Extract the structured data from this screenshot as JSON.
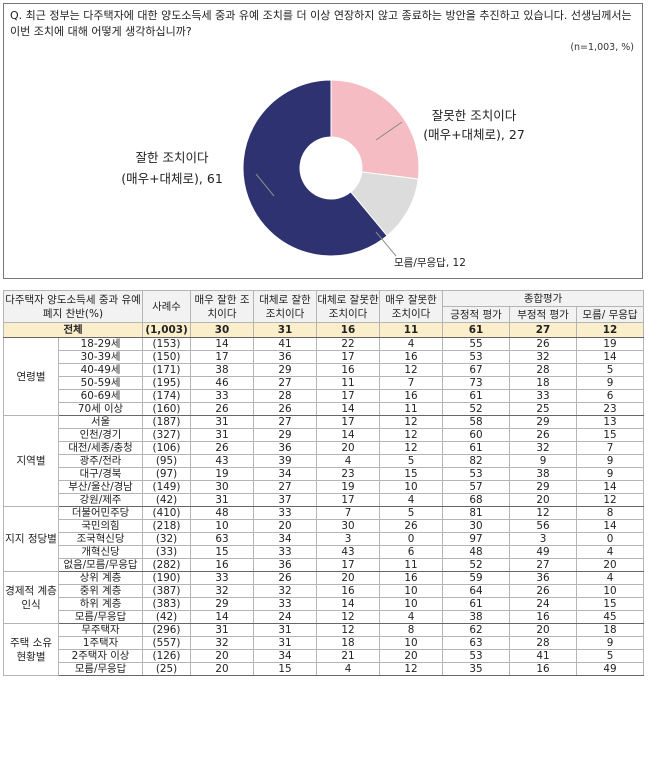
{
  "question": "Q. 최근 정부는 다주택자에 대한 양도소득세 중과 유예 조치를 더 이상 연장하지 않고 종료하는 방안을 추진하고 있습니다. 선생님께서는 이번 조치에 대해 어떻게 생각하십니까?",
  "unit_note": "(n=1,003, %)",
  "colors": {
    "positive": "#2e3270",
    "negative": "#f6bcc3",
    "unknown": "#dcdcdc",
    "header_bg": "#f2f2f2",
    "total_bg": "#fbeecb"
  },
  "chart_data": {
    "type": "pie",
    "donut": true,
    "slices": [
      {
        "label": "잘못한 조치이다",
        "sublabel": "(매우+대체로), 27",
        "value": 27,
        "color": "#f6bcc3"
      },
      {
        "label": "모름/무응답, 12",
        "sublabel": "",
        "value": 12,
        "color": "#dcdcdc"
      },
      {
        "label": "잘한 조치이다",
        "sublabel": "(매우+대체로), 61",
        "value": 61,
        "color": "#2e3270"
      }
    ]
  },
  "table": {
    "headers": {
      "question": "다주택자 양도소득세 중과 유예 폐지 찬반(%)",
      "sample": "사례수",
      "very_good": "매우 잘한 조치이다",
      "fairly_good": "대체로 잘한 조치이다",
      "fairly_bad": "대체로 잘못한 조치이다",
      "very_bad": "매우 잘못한 조치이다",
      "overall": "종합평가",
      "positive": "긍정적 평가",
      "negative": "부정적 평가",
      "unknown": "모름/ 무응답"
    },
    "total": {
      "label": "전체",
      "n": "(1,003)",
      "v": [
        "30",
        "31",
        "16",
        "11",
        "61",
        "27",
        "12"
      ]
    },
    "groups": [
      {
        "name": "연령별",
        "rows": [
          {
            "label": "18-29세",
            "n": "(153)",
            "v": [
              "14",
              "41",
              "22",
              "4",
              "55",
              "26",
              "19"
            ]
          },
          {
            "label": "30-39세",
            "n": "(150)",
            "v": [
              "17",
              "36",
              "17",
              "16",
              "53",
              "32",
              "14"
            ]
          },
          {
            "label": "40-49세",
            "n": "(171)",
            "v": [
              "38",
              "29",
              "16",
              "12",
              "67",
              "28",
              "5"
            ]
          },
          {
            "label": "50-59세",
            "n": "(195)",
            "v": [
              "46",
              "27",
              "11",
              "7",
              "73",
              "18",
              "9"
            ]
          },
          {
            "label": "60-69세",
            "n": "(174)",
            "v": [
              "33",
              "28",
              "17",
              "16",
              "61",
              "33",
              "6"
            ]
          },
          {
            "label": "70세 이상",
            "n": "(160)",
            "v": [
              "26",
              "26",
              "14",
              "11",
              "52",
              "25",
              "23"
            ]
          }
        ]
      },
      {
        "name": "지역별",
        "rows": [
          {
            "label": "서울",
            "n": "(187)",
            "v": [
              "31",
              "27",
              "17",
              "12",
              "58",
              "29",
              "13"
            ]
          },
          {
            "label": "인천/경기",
            "n": "(327)",
            "v": [
              "31",
              "29",
              "14",
              "12",
              "60",
              "26",
              "15"
            ]
          },
          {
            "label": "대전/세종/충청",
            "n": "(106)",
            "v": [
              "26",
              "36",
              "20",
              "12",
              "61",
              "32",
              "7"
            ]
          },
          {
            "label": "광주/전라",
            "n": "(95)",
            "v": [
              "43",
              "39",
              "4",
              "5",
              "82",
              "9",
              "9"
            ]
          },
          {
            "label": "대구/경북",
            "n": "(97)",
            "v": [
              "19",
              "34",
              "23",
              "15",
              "53",
              "38",
              "9"
            ]
          },
          {
            "label": "부산/울산/경남",
            "n": "(149)",
            "v": [
              "30",
              "27",
              "19",
              "10",
              "57",
              "29",
              "14"
            ]
          },
          {
            "label": "강원/제주",
            "n": "(42)",
            "v": [
              "31",
              "37",
              "17",
              "4",
              "68",
              "20",
              "12"
            ]
          }
        ]
      },
      {
        "name": "지지 정당별",
        "rows": [
          {
            "label": "더불어민주당",
            "n": "(410)",
            "v": [
              "48",
              "33",
              "7",
              "5",
              "81",
              "12",
              "8"
            ]
          },
          {
            "label": "국민의힘",
            "n": "(218)",
            "v": [
              "10",
              "20",
              "30",
              "26",
              "30",
              "56",
              "14"
            ]
          },
          {
            "label": "조국혁신당",
            "n": "(32)",
            "v": [
              "63",
              "34",
              "3",
              "0",
              "97",
              "3",
              "0"
            ]
          },
          {
            "label": "개혁신당",
            "n": "(33)",
            "v": [
              "15",
              "33",
              "43",
              "6",
              "48",
              "49",
              "4"
            ]
          },
          {
            "label": "없음/모름/무응답",
            "n": "(282)",
            "v": [
              "16",
              "36",
              "17",
              "11",
              "52",
              "27",
              "20"
            ]
          }
        ]
      },
      {
        "name": "경제적 계층 인식",
        "rows": [
          {
            "label": "상위 계층",
            "n": "(190)",
            "v": [
              "33",
              "26",
              "20",
              "16",
              "59",
              "36",
              "4"
            ]
          },
          {
            "label": "중위 계층",
            "n": "(387)",
            "v": [
              "32",
              "32",
              "16",
              "10",
              "64",
              "26",
              "10"
            ]
          },
          {
            "label": "하위 계층",
            "n": "(383)",
            "v": [
              "29",
              "33",
              "14",
              "10",
              "61",
              "24",
              "15"
            ]
          },
          {
            "label": "모름/무응답",
            "n": "(42)",
            "v": [
              "14",
              "24",
              "12",
              "4",
              "38",
              "16",
              "45"
            ]
          }
        ]
      },
      {
        "name": "주택 소유 현황별",
        "rows": [
          {
            "label": "무주택자",
            "n": "(296)",
            "v": [
              "31",
              "31",
              "12",
              "8",
              "62",
              "20",
              "18"
            ]
          },
          {
            "label": "1주택자",
            "n": "(557)",
            "v": [
              "32",
              "31",
              "18",
              "10",
              "63",
              "28",
              "9"
            ]
          },
          {
            "label": "2주택자 이상",
            "n": "(126)",
            "v": [
              "20",
              "34",
              "21",
              "20",
              "53",
              "41",
              "5"
            ]
          },
          {
            "label": "모름/무응답",
            "n": "(25)",
            "v": [
              "20",
              "15",
              "4",
              "12",
              "35",
              "16",
              "49"
            ]
          }
        ]
      }
    ]
  }
}
